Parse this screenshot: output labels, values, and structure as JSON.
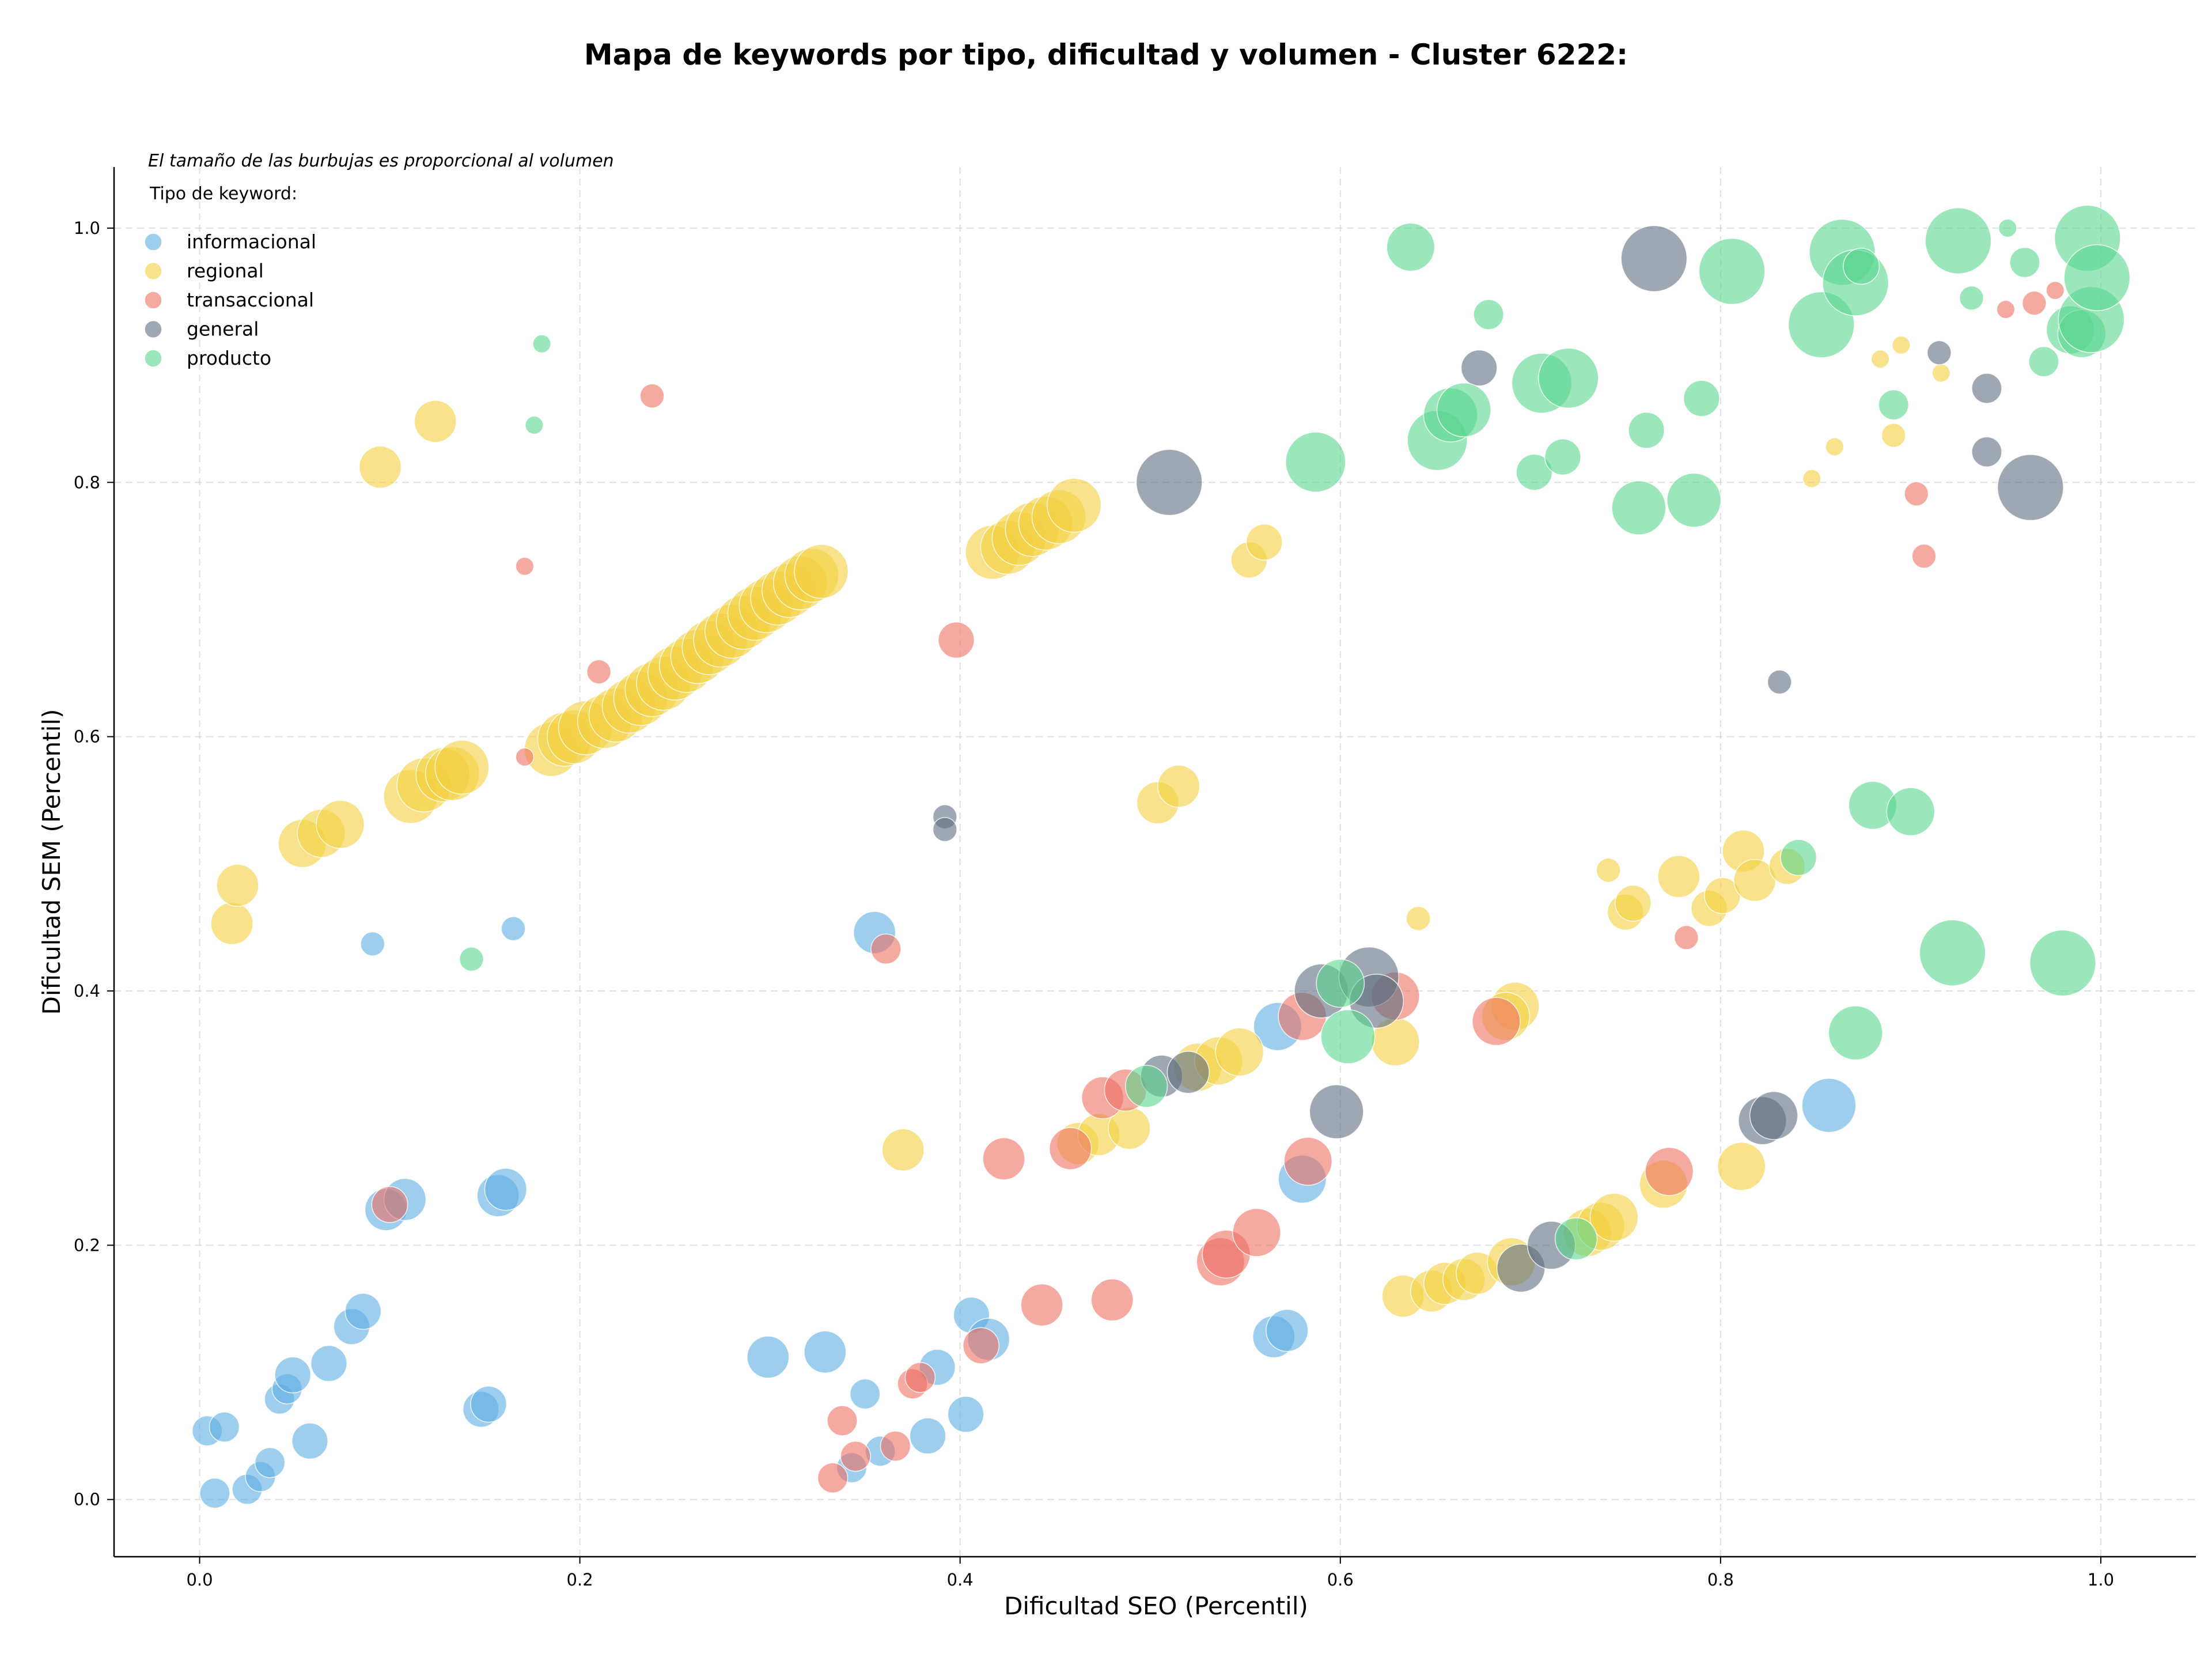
{
  "chart_data": {
    "type": "scatter",
    "title": "Mapa de keywords por tipo, dificultad y volumen - Cluster 6222:",
    "xlabel": "Dificultad SEO (Percentil)",
    "ylabel": "Dificultad SEM (Percentil)",
    "xlim": [
      -0.045,
      1.05
    ],
    "ylim": [
      -0.045,
      1.048
    ],
    "xticks": [
      0.0,
      0.2,
      0.4,
      0.6,
      0.8,
      1.0
    ],
    "yticks": [
      0.0,
      0.2,
      0.4,
      0.6,
      0.8,
      1.0
    ],
    "grid": true,
    "legend_title": "Tipo de keyword:",
    "legend_position": "top-left",
    "note": "El tamaño de las burbujas es proporcional al volumen",
    "series": [
      {
        "name": "informacional",
        "color": "#5DADE2",
        "points": [
          [
            0.004,
            0.054,
            5
          ],
          [
            0.013,
            0.057,
            5
          ],
          [
            0.008,
            0.005,
            5
          ],
          [
            0.025,
            0.008,
            5
          ],
          [
            0.032,
            0.018,
            5
          ],
          [
            0.037,
            0.029,
            5
          ],
          [
            0.042,
            0.079,
            5
          ],
          [
            0.046,
            0.087,
            5
          ],
          [
            0.049,
            0.098,
            6
          ],
          [
            0.058,
            0.046,
            6
          ],
          [
            0.068,
            0.107,
            6
          ],
          [
            0.08,
            0.136,
            6
          ],
          [
            0.086,
            0.148,
            6
          ],
          [
            0.091,
            0.437,
            4
          ],
          [
            0.098,
            0.228,
            7
          ],
          [
            0.108,
            0.236,
            7
          ],
          [
            0.148,
            0.071,
            6
          ],
          [
            0.152,
            0.075,
            6
          ],
          [
            0.157,
            0.239,
            7
          ],
          [
            0.161,
            0.244,
            7
          ],
          [
            0.165,
            0.449,
            4
          ],
          [
            0.299,
            0.112,
            7
          ],
          [
            0.329,
            0.116,
            7
          ],
          [
            0.35,
            0.083,
            5
          ],
          [
            0.355,
            0.446,
            7
          ],
          [
            0.343,
            0.025,
            5
          ],
          [
            0.358,
            0.038,
            5
          ],
          [
            0.383,
            0.05,
            6
          ],
          [
            0.388,
            0.104,
            6
          ],
          [
            0.406,
            0.145,
            6
          ],
          [
            0.415,
            0.126,
            7
          ],
          [
            0.403,
            0.067,
            6
          ],
          [
            0.565,
            0.128,
            7
          ],
          [
            0.572,
            0.133,
            7
          ],
          [
            0.567,
            0.372,
            8
          ],
          [
            0.58,
            0.252,
            8
          ],
          [
            0.857,
            0.31,
            9
          ]
        ]
      },
      {
        "name": "regional",
        "color": "#F4D03F",
        "points": [
          [
            0.017,
            0.453,
            7
          ],
          [
            0.02,
            0.483,
            7
          ],
          [
            0.095,
            0.812,
            7
          ],
          [
            0.124,
            0.848,
            7
          ],
          [
            0.054,
            0.516,
            8
          ],
          [
            0.064,
            0.524,
            8
          ],
          [
            0.074,
            0.531,
            8
          ],
          [
            0.111,
            0.553,
            9
          ],
          [
            0.118,
            0.562,
            9
          ],
          [
            0.128,
            0.57,
            9
          ],
          [
            0.133,
            0.571,
            9
          ],
          [
            0.138,
            0.576,
            9
          ],
          [
            0.185,
            0.59,
            9
          ],
          [
            0.192,
            0.598,
            9
          ],
          [
            0.197,
            0.6,
            9
          ],
          [
            0.203,
            0.607,
            9
          ],
          [
            0.213,
            0.612,
            9
          ],
          [
            0.219,
            0.617,
            9
          ],
          [
            0.226,
            0.624,
            9
          ],
          [
            0.232,
            0.63,
            9
          ],
          [
            0.238,
            0.637,
            9
          ],
          [
            0.244,
            0.642,
            9
          ],
          [
            0.25,
            0.65,
            9
          ],
          [
            0.256,
            0.656,
            9
          ],
          [
            0.262,
            0.663,
            9
          ],
          [
            0.268,
            0.67,
            9
          ],
          [
            0.274,
            0.676,
            9
          ],
          [
            0.28,
            0.683,
            9
          ],
          [
            0.286,
            0.69,
            9
          ],
          [
            0.292,
            0.697,
            9
          ],
          [
            0.298,
            0.703,
            9
          ],
          [
            0.304,
            0.709,
            9
          ],
          [
            0.31,
            0.715,
            9
          ],
          [
            0.316,
            0.721,
            9
          ],
          [
            0.322,
            0.727,
            9
          ],
          [
            0.327,
            0.73,
            9
          ],
          [
            0.417,
            0.745,
            9
          ],
          [
            0.425,
            0.749,
            9
          ],
          [
            0.431,
            0.756,
            9
          ],
          [
            0.438,
            0.763,
            9
          ],
          [
            0.445,
            0.768,
            9
          ],
          [
            0.452,
            0.773,
            9
          ],
          [
            0.46,
            0.782,
            9
          ],
          [
            0.504,
            0.548,
            7
          ],
          [
            0.515,
            0.561,
            7
          ],
          [
            0.552,
            0.739,
            6
          ],
          [
            0.56,
            0.753,
            6
          ],
          [
            0.37,
            0.275,
            7
          ],
          [
            0.462,
            0.28,
            7
          ],
          [
            0.473,
            0.287,
            7
          ],
          [
            0.489,
            0.292,
            7
          ],
          [
            0.525,
            0.34,
            8
          ],
          [
            0.536,
            0.345,
            8
          ],
          [
            0.547,
            0.352,
            8
          ],
          [
            0.629,
            0.36,
            8
          ],
          [
            0.641,
            0.457,
            4
          ],
          [
            0.692,
            0.388,
            8
          ],
          [
            0.687,
            0.38,
            8
          ],
          [
            0.633,
            0.16,
            7
          ],
          [
            0.648,
            0.164,
            7
          ],
          [
            0.655,
            0.17,
            7
          ],
          [
            0.665,
            0.173,
            7
          ],
          [
            0.672,
            0.178,
            7
          ],
          [
            0.69,
            0.187,
            8
          ],
          [
            0.73,
            0.21,
            8
          ],
          [
            0.737,
            0.215,
            8
          ],
          [
            0.744,
            0.222,
            8
          ],
          [
            0.77,
            0.248,
            8
          ],
          [
            0.811,
            0.262,
            8
          ],
          [
            0.741,
            0.495,
            4
          ],
          [
            0.75,
            0.462,
            6
          ],
          [
            0.754,
            0.469,
            6
          ],
          [
            0.778,
            0.49,
            7
          ],
          [
            0.794,
            0.465,
            6
          ],
          [
            0.801,
            0.475,
            6
          ],
          [
            0.812,
            0.51,
            7
          ],
          [
            0.818,
            0.487,
            7
          ],
          [
            0.835,
            0.498,
            6
          ],
          [
            0.848,
            0.803,
            3
          ],
          [
            0.86,
            0.828,
            3
          ],
          [
            0.884,
            0.897,
            3
          ],
          [
            0.891,
            0.837,
            4
          ],
          [
            0.895,
            0.908,
            3
          ],
          [
            0.916,
            0.886,
            3
          ]
        ]
      },
      {
        "name": "transaccional",
        "color": "#EC7063",
        "points": [
          [
            0.1,
            0.232,
            6
          ],
          [
            0.171,
            0.584,
            3
          ],
          [
            0.171,
            0.734,
            3
          ],
          [
            0.21,
            0.651,
            4
          ],
          [
            0.238,
            0.868,
            4
          ],
          [
            0.333,
            0.017,
            5
          ],
          [
            0.338,
            0.062,
            5
          ],
          [
            0.345,
            0.034,
            5
          ],
          [
            0.366,
            0.042,
            5
          ],
          [
            0.375,
            0.091,
            5
          ],
          [
            0.379,
            0.096,
            5
          ],
          [
            0.361,
            0.433,
            5
          ],
          [
            0.398,
            0.676,
            6
          ],
          [
            0.411,
            0.121,
            6
          ],
          [
            0.423,
            0.268,
            7
          ],
          [
            0.443,
            0.153,
            7
          ],
          [
            0.458,
            0.276,
            7
          ],
          [
            0.48,
            0.157,
            7
          ],
          [
            0.475,
            0.316,
            7
          ],
          [
            0.487,
            0.322,
            7
          ],
          [
            0.537,
            0.187,
            8
          ],
          [
            0.54,
            0.193,
            8
          ],
          [
            0.556,
            0.21,
            8
          ],
          [
            0.58,
            0.38,
            8
          ],
          [
            0.583,
            0.266,
            8
          ],
          [
            0.629,
            0.396,
            8
          ],
          [
            0.682,
            0.376,
            8
          ],
          [
            0.773,
            0.258,
            8
          ],
          [
            0.782,
            0.442,
            4
          ],
          [
            0.903,
            0.791,
            4
          ],
          [
            0.907,
            0.742,
            4
          ],
          [
            0.95,
            0.936,
            3
          ],
          [
            0.965,
            0.941,
            4
          ],
          [
            0.976,
            0.951,
            3
          ]
        ]
      },
      {
        "name": "general",
        "color": "#5D6D7E",
        "points": [
          [
            0.392,
            0.537,
            4
          ],
          [
            0.392,
            0.527,
            4
          ],
          [
            0.51,
            0.8,
            11
          ],
          [
            0.506,
            0.333,
            7
          ],
          [
            0.52,
            0.336,
            7
          ],
          [
            0.59,
            0.4,
            9
          ],
          [
            0.598,
            0.305,
            9
          ],
          [
            0.615,
            0.411,
            10
          ],
          [
            0.619,
            0.392,
            9
          ],
          [
            0.673,
            0.89,
            6
          ],
          [
            0.695,
            0.182,
            8
          ],
          [
            0.711,
            0.2,
            8
          ],
          [
            0.765,
            0.976,
            11
          ],
          [
            0.822,
            0.298,
            8
          ],
          [
            0.828,
            0.302,
            8
          ],
          [
            0.831,
            0.643,
            4
          ],
          [
            0.915,
            0.902,
            4
          ],
          [
            0.94,
            0.874,
            5
          ],
          [
            0.94,
            0.824,
            5
          ],
          [
            0.963,
            0.796,
            11
          ]
        ]
      },
      {
        "name": "producto",
        "color": "#58D68D",
        "points": [
          [
            0.143,
            0.425,
            4
          ],
          [
            0.176,
            0.845,
            3
          ],
          [
            0.18,
            0.909,
            3
          ],
          [
            0.498,
            0.325,
            7
          ],
          [
            0.587,
            0.816,
            10
          ],
          [
            0.6,
            0.406,
            8
          ],
          [
            0.604,
            0.364,
            9
          ],
          [
            0.637,
            0.985,
            8
          ],
          [
            0.651,
            0.833,
            10
          ],
          [
            0.658,
            0.853,
            9
          ],
          [
            0.665,
            0.857,
            9
          ],
          [
            0.678,
            0.932,
            5
          ],
          [
            0.702,
            0.808,
            6
          ],
          [
            0.706,
            0.878,
            10
          ],
          [
            0.717,
            0.82,
            6
          ],
          [
            0.72,
            0.882,
            10
          ],
          [
            0.724,
            0.205,
            7
          ],
          [
            0.757,
            0.78,
            9
          ],
          [
            0.761,
            0.841,
            6
          ],
          [
            0.786,
            0.786,
            9
          ],
          [
            0.79,
            0.866,
            6
          ],
          [
            0.806,
            0.966,
            11
          ],
          [
            0.841,
            0.505,
            6
          ],
          [
            0.853,
            0.924,
            11
          ],
          [
            0.864,
            0.981,
            11
          ],
          [
            0.871,
            0.957,
            11
          ],
          [
            0.871,
            0.367,
            9
          ],
          [
            0.874,
            0.97,
            6
          ],
          [
            0.88,
            0.546,
            8
          ],
          [
            0.891,
            0.861,
            5
          ],
          [
            0.9,
            0.541,
            8
          ],
          [
            0.922,
            0.43,
            11
          ],
          [
            0.925,
            0.99,
            11
          ],
          [
            0.932,
            0.945,
            4
          ],
          [
            0.951,
            1.0,
            3
          ],
          [
            0.96,
            0.973,
            5
          ],
          [
            0.97,
            0.895,
            5
          ],
          [
            0.98,
            0.422,
            11
          ],
          [
            0.984,
            0.92,
            8
          ],
          [
            0.99,
            0.917,
            8
          ],
          [
            0.993,
            0.992,
            11
          ],
          [
            0.995,
            0.928,
            11
          ],
          [
            0.998,
            0.961,
            11
          ]
        ]
      }
    ]
  }
}
